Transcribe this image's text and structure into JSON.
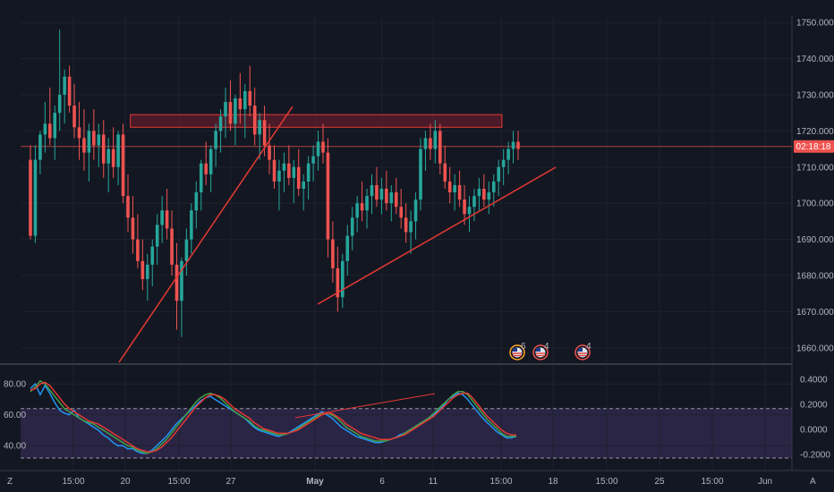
{
  "chart_data": [
    {
      "type": "candlestick",
      "y_ticks": [
        "1750.000",
        "1740.000",
        "1730.000",
        "1720.000",
        "1710.000",
        "1700.000",
        "1690.000",
        "1680.000",
        "1670.000",
        "1660.000"
      ],
      "ylim": [
        1656,
        1752
      ],
      "x_ticks": [
        "15:00",
        "20",
        "15:00",
        "27",
        "May",
        "6",
        "11",
        "15:00",
        "18",
        "15:00",
        "25",
        "15:00",
        "Jun"
      ],
      "current_price_label": "02:18:18",
      "current_price": 1715.7,
      "candle_colors": {
        "up": "#26a69a",
        "down": "#ef5350"
      },
      "candles": [
        [
          1712,
          1716,
          1690,
          1691
        ],
        [
          1691,
          1716,
          1689,
          1712
        ],
        [
          1712,
          1720,
          1708,
          1719
        ],
        [
          1719,
          1728,
          1714,
          1722
        ],
        [
          1722,
          1732,
          1716,
          1718
        ],
        [
          1718,
          1727,
          1712,
          1725
        ],
        [
          1725,
          1748,
          1720,
          1730
        ],
        [
          1730,
          1737,
          1722,
          1735
        ],
        [
          1735,
          1738,
          1725,
          1727
        ],
        [
          1727,
          1733,
          1718,
          1721
        ],
        [
          1721,
          1728,
          1712,
          1718
        ],
        [
          1718,
          1726,
          1709,
          1714
        ],
        [
          1714,
          1722,
          1706,
          1720
        ],
        [
          1720,
          1726,
          1712,
          1716
        ],
        [
          1716,
          1722,
          1710,
          1719
        ],
        [
          1719,
          1723,
          1707,
          1711
        ],
        [
          1711,
          1718,
          1703,
          1715
        ],
        [
          1715,
          1721,
          1707,
          1710
        ],
        [
          1710,
          1720,
          1705,
          1719
        ],
        [
          1719,
          1722,
          1700,
          1702
        ],
        [
          1702,
          1708,
          1692,
          1696
        ],
        [
          1696,
          1702,
          1686,
          1690
        ],
        [
          1690,
          1697,
          1682,
          1684
        ],
        [
          1684,
          1690,
          1676,
          1679
        ],
        [
          1679,
          1686,
          1673,
          1683
        ],
        [
          1683,
          1690,
          1677,
          1688
        ],
        [
          1688,
          1697,
          1683,
          1694
        ],
        [
          1694,
          1702,
          1689,
          1698
        ],
        [
          1698,
          1704,
          1690,
          1693
        ],
        [
          1693,
          1698,
          1680,
          1683
        ],
        [
          1683,
          1689,
          1665,
          1673
        ],
        [
          1673,
          1685,
          1663,
          1684
        ],
        [
          1684,
          1693,
          1680,
          1690
        ],
        [
          1690,
          1700,
          1686,
          1698
        ],
        [
          1698,
          1706,
          1693,
          1703
        ],
        [
          1703,
          1712,
          1698,
          1711
        ],
        [
          1711,
          1717,
          1705,
          1708
        ],
        [
          1708,
          1716,
          1703,
          1715
        ],
        [
          1715,
          1722,
          1710,
          1720
        ],
        [
          1720,
          1726,
          1714,
          1724
        ],
        [
          1724,
          1732,
          1718,
          1728
        ],
        [
          1728,
          1734,
          1720,
          1722
        ],
        [
          1722,
          1730,
          1716,
          1729
        ],
        [
          1729,
          1736,
          1722,
          1726
        ],
        [
          1726,
          1733,
          1718,
          1731
        ],
        [
          1731,
          1738,
          1724,
          1727
        ],
        [
          1727,
          1732,
          1716,
          1719
        ],
        [
          1719,
          1725,
          1712,
          1723
        ],
        [
          1723,
          1727,
          1713,
          1716
        ],
        [
          1716,
          1722,
          1708,
          1712
        ],
        [
          1712,
          1716,
          1704,
          1706
        ],
        [
          1706,
          1712,
          1698,
          1709
        ],
        [
          1709,
          1714,
          1703,
          1711
        ],
        [
          1711,
          1716,
          1705,
          1707
        ],
        [
          1707,
          1712,
          1700,
          1710
        ],
        [
          1710,
          1715,
          1702,
          1704
        ],
        [
          1704,
          1708,
          1698,
          1706
        ],
        [
          1706,
          1713,
          1701,
          1711
        ],
        [
          1711,
          1716,
          1706,
          1713
        ],
        [
          1713,
          1720,
          1709,
          1717
        ],
        [
          1717,
          1722,
          1711,
          1714
        ],
        [
          1714,
          1718,
          1685,
          1690
        ],
        [
          1690,
          1695,
          1678,
          1682
        ],
        [
          1682,
          1688,
          1670,
          1674
        ],
        [
          1674,
          1686,
          1671,
          1684
        ],
        [
          1684,
          1694,
          1680,
          1691
        ],
        [
          1691,
          1699,
          1687,
          1696
        ],
        [
          1696,
          1702,
          1692,
          1700
        ],
        [
          1700,
          1706,
          1695,
          1698
        ],
        [
          1698,
          1704,
          1693,
          1702
        ],
        [
          1702,
          1708,
          1697,
          1705
        ],
        [
          1705,
          1710,
          1699,
          1701
        ],
        [
          1701,
          1707,
          1697,
          1704
        ],
        [
          1704,
          1709,
          1698,
          1700
        ],
        [
          1700,
          1705,
          1695,
          1703
        ],
        [
          1703,
          1707,
          1697,
          1699
        ],
        [
          1699,
          1704,
          1693,
          1696
        ],
        [
          1696,
          1700,
          1689,
          1692
        ],
        [
          1692,
          1698,
          1686,
          1695
        ],
        [
          1695,
          1703,
          1690,
          1701
        ],
        [
          1701,
          1718,
          1698,
          1715
        ],
        [
          1715,
          1720,
          1709,
          1718
        ],
        [
          1718,
          1722,
          1712,
          1715
        ],
        [
          1715,
          1723,
          1711,
          1720
        ],
        [
          1720,
          1722,
          1708,
          1711
        ],
        [
          1711,
          1716,
          1704,
          1706
        ],
        [
          1706,
          1710,
          1700,
          1703
        ],
        [
          1703,
          1708,
          1698,
          1705
        ],
        [
          1705,
          1709,
          1699,
          1701
        ],
        [
          1701,
          1705,
          1694,
          1697
        ],
        [
          1697,
          1702,
          1692,
          1699
        ],
        [
          1699,
          1704,
          1695,
          1702
        ],
        [
          1702,
          1707,
          1698,
          1704
        ],
        [
          1704,
          1708,
          1699,
          1701
        ],
        [
          1701,
          1706,
          1697,
          1703
        ],
        [
          1703,
          1708,
          1699,
          1706
        ],
        [
          1706,
          1712,
          1702,
          1710
        ],
        [
          1710,
          1715,
          1705,
          1712
        ],
        [
          1712,
          1717,
          1708,
          1715
        ],
        [
          1715,
          1720,
          1711,
          1717
        ],
        [
          1717,
          1720,
          1712,
          1715
        ]
      ],
      "drawings": {
        "trendline_1": [
          [
            0.0,
            1657
          ],
          [
            21.0,
            1727
          ]
        ],
        "trendline_2": [
          [
            23.0,
            1670
          ],
          [
            44.2,
            1714
          ]
        ],
        "resistance_zone": {
          "from": [
            20.5,
            1721
          ],
          "to": [
            45.3,
            1724.5
          ]
        },
        "current_price_line": 1715.7
      }
    },
    {
      "type": "line",
      "indicator_label": "Z",
      "left_ticks": [
        "80.00",
        "60.00",
        "40.00"
      ],
      "left_ylim": [
        25,
        90
      ],
      "right_ticks": [
        "0.4000",
        "0.2000",
        "0.0000",
        "-0.2000"
      ],
      "bands": [
        64,
        32
      ],
      "series": [
        {
          "color": "#2196f3",
          "values": [
            77,
            80,
            73,
            79,
            74,
            68,
            63,
            61,
            60,
            63,
            58,
            56,
            54,
            52,
            50,
            47,
            45,
            42,
            40,
            40,
            38,
            38,
            36,
            35,
            35,
            37,
            40,
            43,
            46,
            50,
            54,
            57,
            60,
            63,
            66,
            69,
            71,
            72,
            70,
            68,
            66,
            64,
            62,
            60,
            58,
            55,
            52,
            50,
            49,
            48,
            47,
            46,
            47,
            48,
            50,
            52,
            54,
            56,
            58,
            60,
            62,
            60,
            58,
            55,
            52,
            50,
            48,
            46,
            45,
            44,
            43,
            42,
            42,
            43,
            44,
            45,
            47,
            48,
            50,
            52,
            54,
            56,
            58,
            60,
            63,
            66,
            70,
            72,
            74,
            73,
            70,
            66,
            62,
            58,
            55,
            52,
            49,
            47,
            45,
            45,
            46
          ]
        },
        {
          "color": "#43a047",
          "values": [
            75,
            78,
            82,
            80,
            76,
            72,
            68,
            64,
            62,
            60,
            58,
            56,
            55,
            54,
            52,
            50,
            48,
            46,
            44,
            42,
            40,
            39,
            37,
            36,
            35,
            36,
            38,
            41,
            44,
            48,
            52,
            56,
            60,
            64,
            68,
            71,
            73,
            74,
            73,
            71,
            68,
            65,
            62,
            60,
            58,
            56,
            53,
            51,
            50,
            49,
            48,
            47,
            47,
            48,
            49,
            51,
            53,
            55,
            57,
            59,
            61,
            61,
            60,
            58,
            55,
            52,
            50,
            48,
            46,
            45,
            44,
            43,
            43,
            43,
            44,
            45,
            46,
            48,
            50,
            52,
            54,
            56,
            58,
            61,
            64,
            67,
            70,
            73,
            75,
            75,
            73,
            69,
            65,
            61,
            57,
            54,
            51,
            48,
            46,
            46,
            46
          ]
        },
        {
          "color": "#e53935",
          "values": [
            76,
            77,
            80,
            81,
            79,
            75,
            71,
            67,
            64,
            62,
            60,
            58,
            56,
            55,
            54,
            52,
            50,
            48,
            46,
            44,
            42,
            40,
            38,
            37,
            36,
            36,
            37,
            39,
            42,
            45,
            49,
            53,
            57,
            61,
            65,
            68,
            71,
            73,
            73,
            72,
            70,
            67,
            64,
            62,
            60,
            58,
            55,
            53,
            51,
            50,
            49,
            48,
            48,
            48,
            49,
            50,
            52,
            54,
            56,
            58,
            60,
            61,
            61,
            59,
            57,
            54,
            52,
            50,
            48,
            47,
            46,
            45,
            44,
            44,
            44,
            45,
            46,
            47,
            49,
            51,
            53,
            55,
            57,
            59,
            62,
            65,
            68,
            71,
            73,
            74,
            74,
            71,
            67,
            63,
            59,
            56,
            53,
            50,
            48,
            47,
            47
          ]
        }
      ]
    }
  ],
  "events": [
    {
      "icon": "us-flag-icon",
      "count": "6"
    },
    {
      "icon": "us-flag-icon",
      "count": "4"
    },
    {
      "icon": "us-flag-icon",
      "count": "4"
    }
  ],
  "corner_labels": {
    "bottom_left": "Z",
    "bottom_right": "A"
  }
}
